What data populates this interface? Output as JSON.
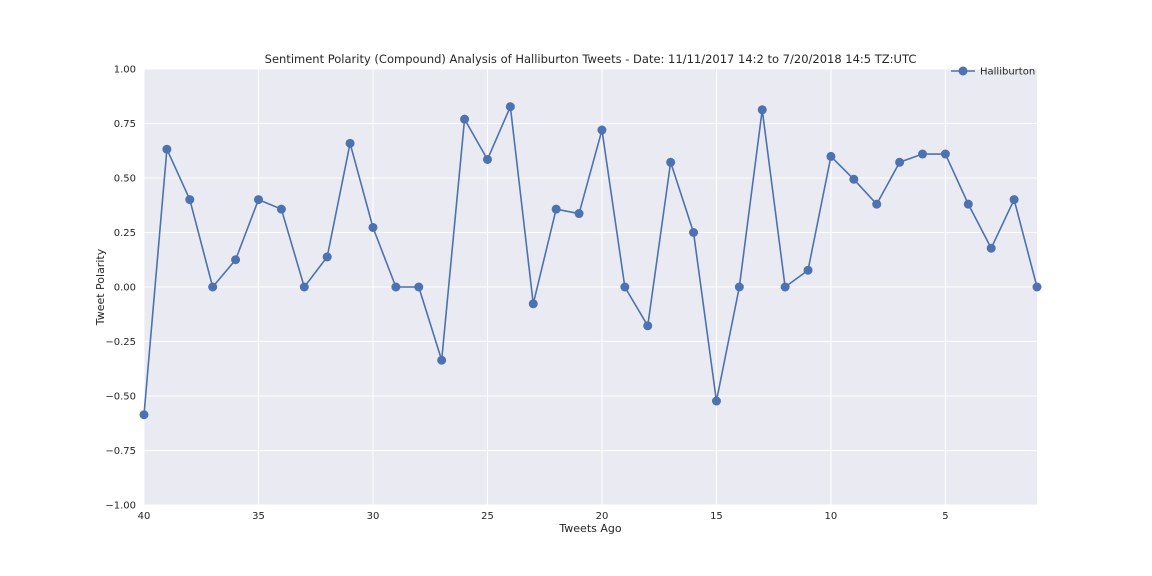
{
  "chart_data": {
    "type": "line",
    "title": "Sentiment Polarity (Compound) Analysis of Halliburton Tweets - Date: 11/11/2017 14:2 to 7/20/2018 14:5 TZ:UTC",
    "xlabel": "Tweets Ago",
    "ylabel": "Tweet Polarity",
    "xlim": [
      40,
      1
    ],
    "ylim": [
      -1.0,
      1.0
    ],
    "x_reversed": true,
    "grid": true,
    "legend_position": "top-right",
    "x_ticks": [
      40,
      35,
      30,
      25,
      20,
      15,
      10,
      5
    ],
    "x_tick_labels": [
      "40",
      "35",
      "30",
      "25",
      "20",
      "15",
      "10",
      "5"
    ],
    "y_ticks": [
      -1.0,
      -0.75,
      -0.5,
      -0.25,
      0.0,
      0.25,
      0.5,
      0.75,
      1.0
    ],
    "y_tick_labels": [
      "−1.00",
      "−0.75",
      "−0.50",
      "−0.25",
      "0.00",
      "0.25",
      "0.50",
      "0.75",
      "1.00"
    ],
    "colors": {
      "line": "#4c72b0",
      "plot_background": "#eaeaf2",
      "grid": "#ffffff"
    },
    "series": [
      {
        "name": "Halliburton",
        "x": [
          40,
          39,
          38,
          37,
          36,
          35,
          34,
          33,
          32,
          31,
          30,
          29,
          28,
          27,
          26,
          25,
          24,
          23,
          22,
          21,
          20,
          19,
          18,
          17,
          16,
          15,
          14,
          13,
          12,
          11,
          10,
          9,
          8,
          7,
          6,
          5,
          4,
          3,
          2,
          1
        ],
        "y": [
          -0.586,
          0.632,
          0.401,
          0.0,
          0.125,
          0.401,
          0.357,
          0.0,
          0.138,
          0.659,
          0.273,
          0.0,
          0.0,
          -0.336,
          0.77,
          0.585,
          0.827,
          -0.077,
          0.357,
          0.337,
          0.72,
          0.0,
          -0.178,
          0.572,
          0.25,
          -0.523,
          0.0,
          0.813,
          0.0,
          0.077,
          0.599,
          0.494,
          0.38,
          0.572,
          0.61,
          0.61,
          0.38,
          0.178,
          0.401,
          0.0
        ]
      }
    ]
  }
}
